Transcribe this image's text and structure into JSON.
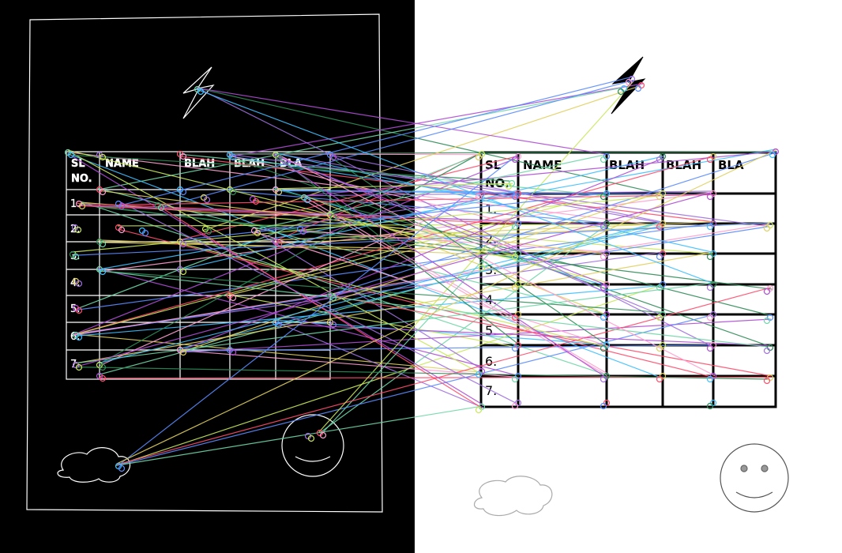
{
  "left_table": {
    "headers": [
      "SL",
      "NO.",
      "NAME",
      "BLAH",
      "BLAH",
      "BLA"
    ],
    "cells": [
      "1.",
      "2.",
      "3.",
      "4.",
      "5.",
      "6.",
      "7."
    ]
  },
  "right_table": {
    "headers": [
      "SL",
      "NO.",
      "NAME",
      "BLAH",
      "BLAH",
      "BLA"
    ],
    "rows": [
      "1.",
      "2.",
      "3.",
      "4.",
      "5.",
      "6.",
      "7."
    ]
  },
  "colors": {
    "left_background": "#000000",
    "right_background": "#ffffff",
    "match_lines": [
      "#6fd6a8",
      "#a070e0",
      "#ff4d6d",
      "#3fbfff",
      "#c8e85a",
      "#ff9fd0",
      "#5a8cff",
      "#2e8b57",
      "#e0d060",
      "#b04dd6"
    ]
  },
  "icons": [
    "lightning-icon",
    "cloud-icon",
    "smiley-face-icon"
  ]
}
